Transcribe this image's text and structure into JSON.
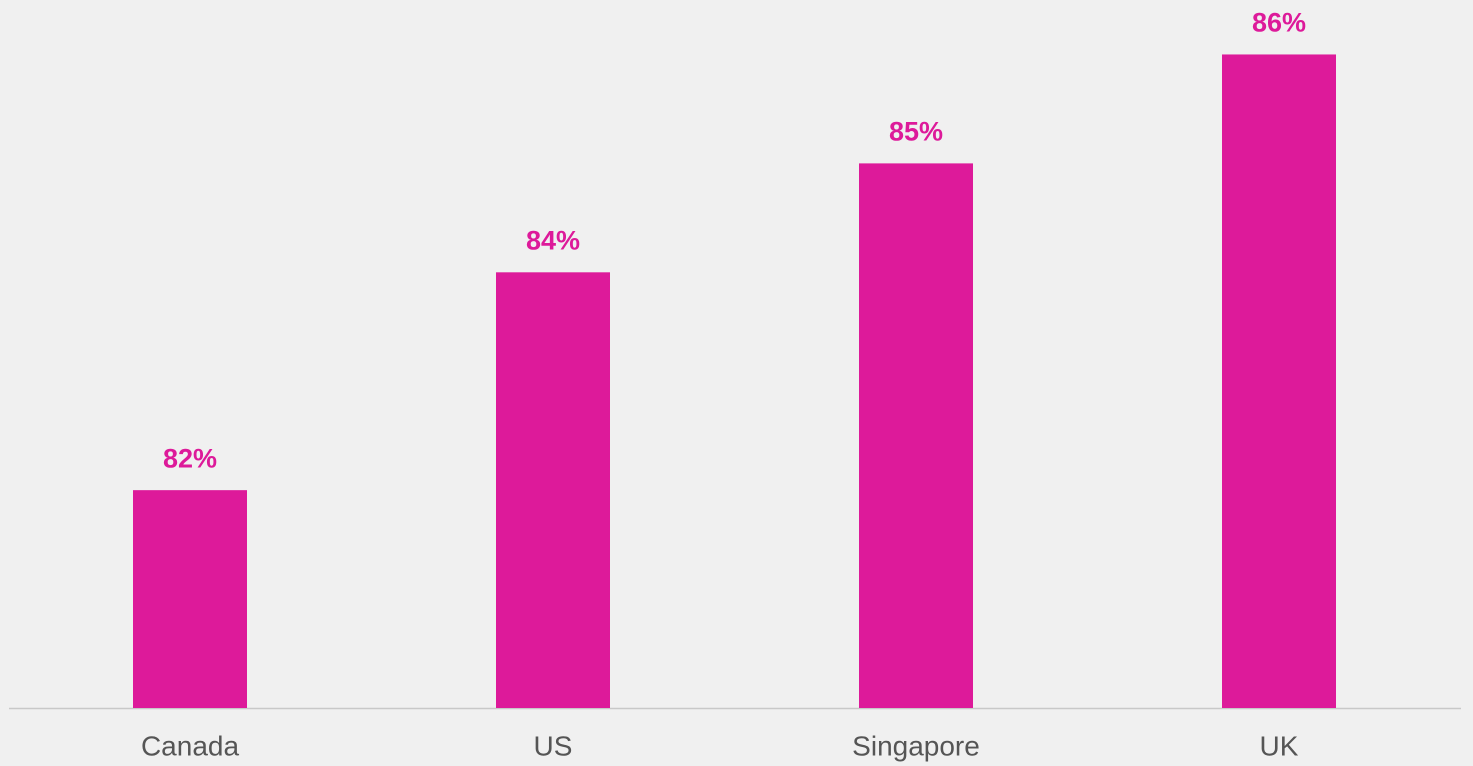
{
  "chart_data": {
    "type": "bar",
    "categories": [
      "Canada",
      "US",
      "Singapore",
      "UK"
    ],
    "values": [
      82,
      84,
      85,
      86
    ],
    "value_labels": [
      "82%",
      "84%",
      "85%",
      "86%"
    ],
    "color": "#dd1a9a",
    "ylim": [
      80,
      86.5
    ]
  }
}
